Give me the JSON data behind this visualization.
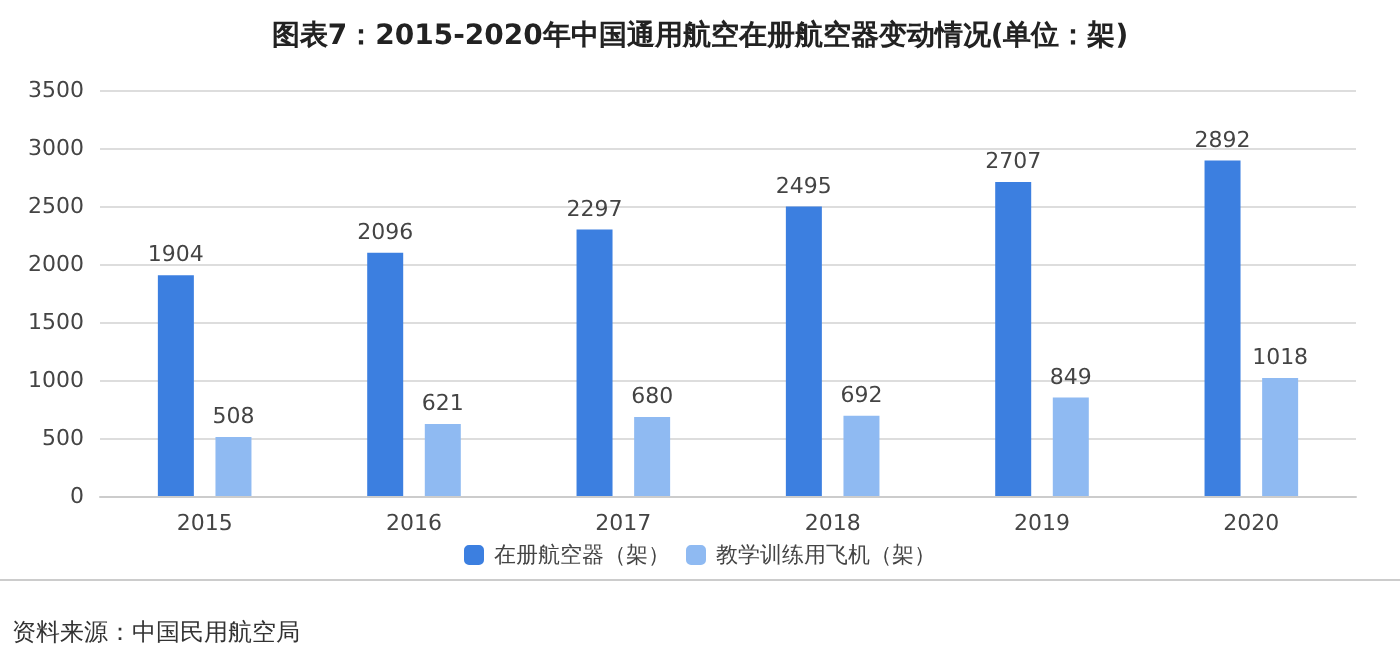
{
  "chart_data": {
    "type": "bar",
    "title": "图表7：2015-2020年中国通用航空在册航空器变动情况(单位：架)",
    "categories": [
      "2015",
      "2016",
      "2017",
      "2018",
      "2019",
      "2020"
    ],
    "series": [
      {
        "name": "在册航空器（架）",
        "color": "#3c7fe0",
        "values": [
          1904,
          2096,
          2297,
          2495,
          2707,
          2892
        ]
      },
      {
        "name": "教学训练用飞机（架）",
        "color": "#8fbaf2",
        "values": [
          508,
          621,
          680,
          692,
          849,
          1018
        ]
      }
    ],
    "ylim": [
      0,
      3500
    ],
    "yticks": [
      0,
      500,
      1000,
      1500,
      2000,
      2500,
      3000,
      3500
    ],
    "grid": "y",
    "legend": "bottom",
    "data_labels": true,
    "annotations": [
      "资料来源：中国民用航空局"
    ]
  }
}
